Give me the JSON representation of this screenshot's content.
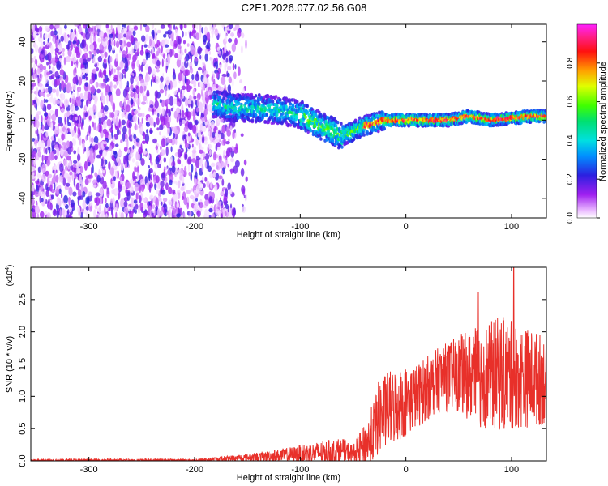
{
  "title": "C2E1.2026.077.02.56.G08",
  "colors": {
    "signal": "#e8302a",
    "background": "#ffffff",
    "axis": "#000000"
  },
  "chart_data": [
    {
      "type": "heatmap",
      "title": "C2E1.2026.077.02.56.G08",
      "xlabel": "Height of straight line (km)",
      "ylabel": "Frequency (Hz)",
      "xlim": [
        -355,
        133
      ],
      "ylim": [
        -50,
        49
      ],
      "xticks": [
        -300,
        -200,
        -100,
        0,
        100
      ],
      "yticks": [
        -40,
        -20,
        0,
        20,
        40
      ],
      "colorbar": {
        "label": "Normalized spectral amplitude",
        "range": [
          0.0,
          1.0
        ],
        "ticks": [
          "0.0",
          "0.2",
          "0.4",
          "0.6",
          "0.8"
        ],
        "tick_values": [
          0.0,
          0.2,
          0.4,
          0.6,
          0.8
        ],
        "colormap": "rainbow (magenta-blue-cyan-green-yellow-red-magenta)"
      },
      "trace_center_hz": [
        {
          "x": -180,
          "y": 8
        },
        {
          "x": -160,
          "y": 6
        },
        {
          "x": -140,
          "y": 6
        },
        {
          "x": -120,
          "y": 5
        },
        {
          "x": -100,
          "y": 3
        },
        {
          "x": -80,
          "y": -3
        },
        {
          "x": -60,
          "y": -8
        },
        {
          "x": -40,
          "y": -3
        },
        {
          "x": -20,
          "y": 0
        },
        {
          "x": 0,
          "y": 0
        },
        {
          "x": 20,
          "y": 0
        },
        {
          "x": 40,
          "y": 0
        },
        {
          "x": 60,
          "y": 2
        },
        {
          "x": 80,
          "y": 0
        },
        {
          "x": 100,
          "y": 1
        },
        {
          "x": 120,
          "y": 2
        },
        {
          "x": 133,
          "y": 2
        }
      ]
    },
    {
      "type": "line",
      "xlabel": "Height of straight line (km)",
      "ylabel": "SNR (10 * v/v)",
      "y_multiplier": "(x10",
      "y_multiplier_exp": "4",
      "y_multiplier_close": ")",
      "xlim": [
        -355,
        133
      ],
      "ylim": [
        0,
        3.0
      ],
      "xticks": [
        -300,
        -200,
        -100,
        0,
        100
      ],
      "yticks": [
        "0.0",
        "0.5",
        "1.0",
        "1.5",
        "2.0",
        "2.5"
      ],
      "ytick_values": [
        0.0,
        0.5,
        1.0,
        1.5,
        2.0,
        2.5
      ],
      "series": [
        {
          "name": "SNR",
          "envelope": [
            {
              "x": -355,
              "mean": 0.01,
              "spread": 0.02
            },
            {
              "x": -200,
              "mean": 0.01,
              "spread": 0.02
            },
            {
              "x": -150,
              "mean": 0.05,
              "spread": 0.06
            },
            {
              "x": -120,
              "mean": 0.08,
              "spread": 0.1
            },
            {
              "x": -90,
              "mean": 0.12,
              "spread": 0.16
            },
            {
              "x": -60,
              "mean": 0.15,
              "spread": 0.2
            },
            {
              "x": -50,
              "mean": 0.1,
              "spread": 0.15
            },
            {
              "x": -35,
              "mean": 0.3,
              "spread": 0.4
            },
            {
              "x": -25,
              "mean": 0.7,
              "spread": 0.6
            },
            {
              "x": -10,
              "mean": 0.85,
              "spread": 0.6
            },
            {
              "x": 10,
              "mean": 1.0,
              "spread": 0.5
            },
            {
              "x": 30,
              "mean": 1.25,
              "spread": 0.5
            },
            {
              "x": 50,
              "mean": 1.35,
              "spread": 0.6
            },
            {
              "x": 70,
              "mean": 1.3,
              "spread": 0.8
            },
            {
              "x": 90,
              "mean": 1.35,
              "spread": 0.9
            },
            {
              "x": 110,
              "mean": 1.3,
              "spread": 0.8
            },
            {
              "x": 133,
              "mean": 1.25,
              "spread": 0.7
            }
          ],
          "peak": {
            "x": 102,
            "y": 3.0
          }
        }
      ]
    }
  ]
}
